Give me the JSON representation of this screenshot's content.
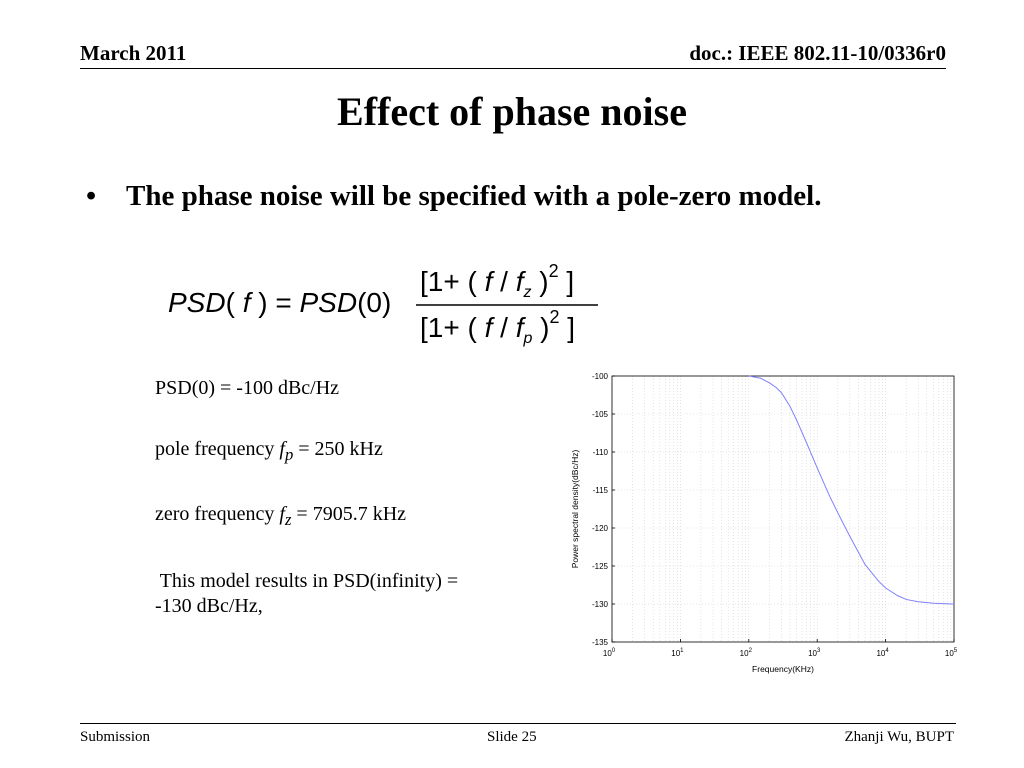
{
  "header": {
    "date": "March 2011",
    "doc_id": "doc.: IEEE 802.11-10/0336r0"
  },
  "title": "Effect of phase noise",
  "bullet": {
    "marker": "•",
    "text": "The phase noise will be specified with a pole-zero model."
  },
  "formula": {
    "lhs": "PSD( f ) = PSD(0)",
    "numerator": "[1+ ( f / f_z )^2 ]",
    "denominator": "[1+ ( f / f_p )^2 ]"
  },
  "params": {
    "psd0": "PSD(0) = -100 dBc/Hz",
    "pole_prefix": "pole frequency ",
    "pole_sym": "f",
    "pole_sub": "p",
    "pole_value": " = 250 kHz",
    "zero_prefix": "zero frequency ",
    "zero_sym": "f",
    "zero_sub": "z",
    "zero_value": " = 7905.7 kHz",
    "note_line1": " This model results in PSD(infinity) =",
    "note_line2": "-130 dBc/Hz,"
  },
  "chart_data": {
    "type": "line",
    "title": "",
    "xlabel": "Frequency(KHz)",
    "ylabel": "Power spectral density(dBc/Hz)",
    "xscale": "log",
    "xlim": [
      1,
      100000
    ],
    "ylim": [
      -135,
      -100
    ],
    "grid": true,
    "x_ticks": [
      "10^0",
      "10^1",
      "10^2",
      "10^3",
      "10^4",
      "10^5"
    ],
    "y_ticks": [
      -100,
      -105,
      -110,
      -115,
      -120,
      -125,
      -130,
      -135
    ],
    "series": [
      {
        "color": "#8080ff",
        "x": [
          100,
          150,
          200,
          250,
          300,
          400,
          500,
          700,
          1000,
          1500,
          2000,
          3000,
          5000,
          7905.7,
          10000,
          15000,
          20000,
          30000,
          50000,
          100000
        ],
        "y": [
          -100,
          -100.3,
          -100.9,
          -101.5,
          -102.2,
          -104.0,
          -105.8,
          -108.8,
          -112.1,
          -115.7,
          -118.0,
          -121.1,
          -124.8,
          -127.0,
          -127.9,
          -128.9,
          -129.4,
          -129.7,
          -129.9,
          -130.0
        ]
      }
    ]
  },
  "footer": {
    "left": "Submission",
    "center": "Slide 25",
    "right": "Zhanji Wu, BUPT"
  }
}
